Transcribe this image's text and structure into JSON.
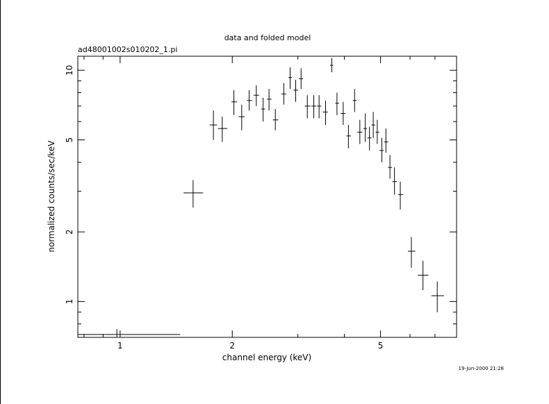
{
  "chart_data": {
    "type": "scatter",
    "title": "data and folded model",
    "subtitle": "ad48001002s010202_1.pi",
    "xlabel": "channel energy (keV)",
    "ylabel": "normalized counts/sec/keV",
    "timestamp": "19-Jun-2000 21:28",
    "x_scale": "log",
    "y_scale": "log",
    "xlim": [
      0.77,
      8.0
    ],
    "ylim": [
      0.7,
      11.5
    ],
    "x_ticks": [
      1,
      2,
      5
    ],
    "x_tick_labels": [
      "1",
      "2",
      "5"
    ],
    "y_ticks": [
      1,
      2,
      5,
      10
    ],
    "y_tick_labels": [
      "1",
      "2",
      "5",
      "10"
    ],
    "grid": false,
    "legend": "none",
    "series": [
      {
        "points": [
          {
            "x": 0.98,
            "xlo": 0.77,
            "xhi": 1.45,
            "y": 0.72,
            "ylo": 0.68,
            "yhi": 0.76
          },
          {
            "x": 1.57,
            "xlo": 1.48,
            "xhi": 1.67,
            "y": 2.95,
            "ylo": 2.55,
            "yhi": 3.35
          },
          {
            "x": 1.78,
            "xlo": 1.74,
            "xhi": 1.82,
            "y": 5.8,
            "ylo": 5.0,
            "yhi": 6.7
          },
          {
            "x": 1.88,
            "xlo": 1.83,
            "xhi": 1.94,
            "y": 5.6,
            "ylo": 4.9,
            "yhi": 6.3
          },
          {
            "x": 2.02,
            "xlo": 1.99,
            "xhi": 2.06,
            "y": 7.3,
            "ylo": 6.4,
            "yhi": 8.2
          },
          {
            "x": 2.12,
            "xlo": 2.08,
            "xhi": 2.16,
            "y": 6.3,
            "ylo": 5.5,
            "yhi": 7.1
          },
          {
            "x": 2.22,
            "xlo": 2.19,
            "xhi": 2.26,
            "y": 7.4,
            "ylo": 6.7,
            "yhi": 8.2
          },
          {
            "x": 2.32,
            "xlo": 2.28,
            "xhi": 2.36,
            "y": 7.8,
            "ylo": 7.0,
            "yhi": 8.6
          },
          {
            "x": 2.42,
            "xlo": 2.39,
            "xhi": 2.45,
            "y": 6.8,
            "ylo": 6.0,
            "yhi": 7.6
          },
          {
            "x": 2.51,
            "xlo": 2.48,
            "xhi": 2.55,
            "y": 7.5,
            "ylo": 6.7,
            "yhi": 8.3
          },
          {
            "x": 2.61,
            "xlo": 2.57,
            "xhi": 2.66,
            "y": 6.1,
            "ylo": 5.5,
            "yhi": 6.8
          },
          {
            "x": 2.75,
            "xlo": 2.71,
            "xhi": 2.79,
            "y": 7.9,
            "ylo": 7.1,
            "yhi": 8.8
          },
          {
            "x": 2.86,
            "xlo": 2.83,
            "xhi": 2.89,
            "y": 9.3,
            "ylo": 8.3,
            "yhi": 10.3
          },
          {
            "x": 2.96,
            "xlo": 2.92,
            "xhi": 3.0,
            "y": 8.2,
            "ylo": 7.3,
            "yhi": 9.1
          },
          {
            "x": 3.06,
            "xlo": 3.02,
            "xhi": 3.1,
            "y": 9.2,
            "ylo": 8.3,
            "yhi": 10.2
          },
          {
            "x": 3.18,
            "xlo": 3.13,
            "xhi": 3.24,
            "y": 7.0,
            "ylo": 6.2,
            "yhi": 7.8
          },
          {
            "x": 3.31,
            "xlo": 3.26,
            "xhi": 3.36,
            "y": 7.0,
            "ylo": 6.2,
            "yhi": 7.8
          },
          {
            "x": 3.42,
            "xlo": 3.38,
            "xhi": 3.47,
            "y": 7.0,
            "ylo": 6.2,
            "yhi": 7.8
          },
          {
            "x": 3.56,
            "xlo": 3.5,
            "xhi": 3.61,
            "y": 6.6,
            "ylo": 5.8,
            "yhi": 7.4
          },
          {
            "x": 3.7,
            "xlo": 3.66,
            "xhi": 3.73,
            "y": 10.5,
            "ylo": 9.8,
            "yhi": 11.3
          },
          {
            "x": 3.82,
            "xlo": 3.78,
            "xhi": 3.87,
            "y": 7.2,
            "ylo": 6.4,
            "yhi": 8.0
          },
          {
            "x": 3.97,
            "xlo": 3.91,
            "xhi": 4.03,
            "y": 6.5,
            "ylo": 5.8,
            "yhi": 7.3
          },
          {
            "x": 4.1,
            "xlo": 4.05,
            "xhi": 4.16,
            "y": 5.2,
            "ylo": 4.6,
            "yhi": 5.8
          },
          {
            "x": 4.26,
            "xlo": 4.21,
            "xhi": 4.31,
            "y": 7.4,
            "ylo": 6.6,
            "yhi": 8.3
          },
          {
            "x": 4.4,
            "xlo": 4.33,
            "xhi": 4.47,
            "y": 5.4,
            "ylo": 4.8,
            "yhi": 6.1
          },
          {
            "x": 4.55,
            "xlo": 4.5,
            "xhi": 4.6,
            "y": 5.6,
            "ylo": 4.9,
            "yhi": 6.5
          },
          {
            "x": 4.67,
            "xlo": 4.61,
            "xhi": 4.73,
            "y": 5.1,
            "ylo": 4.5,
            "yhi": 5.7
          },
          {
            "x": 4.78,
            "xlo": 4.73,
            "xhi": 4.84,
            "y": 5.8,
            "ylo": 5.1,
            "yhi": 6.6
          },
          {
            "x": 4.9,
            "xlo": 4.85,
            "xhi": 4.96,
            "y": 5.4,
            "ylo": 4.8,
            "yhi": 6.1
          },
          {
            "x": 5.04,
            "xlo": 4.97,
            "xhi": 5.1,
            "y": 4.5,
            "ylo": 4.0,
            "yhi": 5.1
          },
          {
            "x": 5.17,
            "xlo": 5.11,
            "xhi": 5.24,
            "y": 4.9,
            "ylo": 4.4,
            "yhi": 5.6
          },
          {
            "x": 5.3,
            "xlo": 5.24,
            "xhi": 5.37,
            "y": 3.8,
            "ylo": 3.4,
            "yhi": 4.3
          },
          {
            "x": 5.45,
            "xlo": 5.38,
            "xhi": 5.53,
            "y": 3.3,
            "ylo": 2.9,
            "yhi": 3.8
          },
          {
            "x": 5.65,
            "xlo": 5.57,
            "xhi": 5.75,
            "y": 2.9,
            "ylo": 2.5,
            "yhi": 3.3
          },
          {
            "x": 6.05,
            "xlo": 5.92,
            "xhi": 6.2,
            "y": 1.65,
            "ylo": 1.4,
            "yhi": 1.9
          },
          {
            "x": 6.5,
            "xlo": 6.3,
            "xhi": 6.72,
            "y": 1.3,
            "ylo": 1.12,
            "yhi": 1.5
          },
          {
            "x": 7.1,
            "xlo": 6.85,
            "xhi": 7.4,
            "y": 1.06,
            "ylo": 0.9,
            "yhi": 1.22
          }
        ]
      }
    ]
  }
}
